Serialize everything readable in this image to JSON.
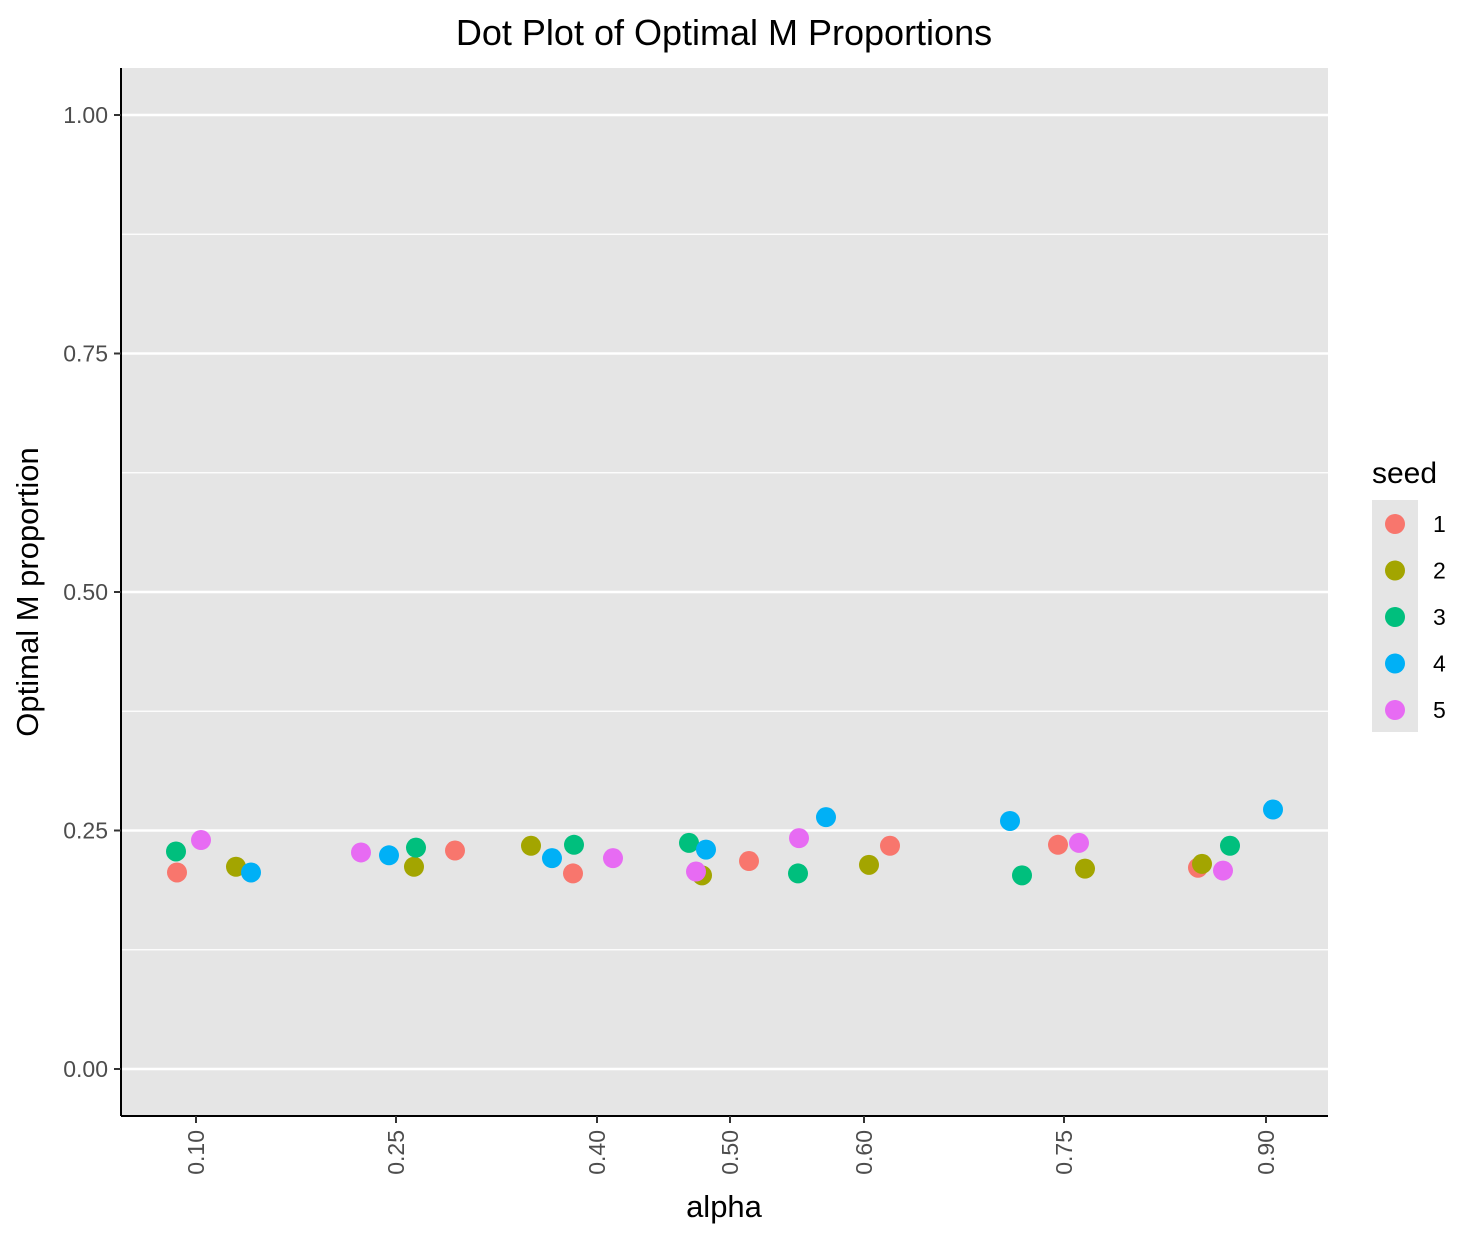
{
  "chart_data": {
    "type": "scatter",
    "title": "Dot Plot of Optimal M Proportions",
    "xlabel": "alpha",
    "ylabel": "Optimal M proportion",
    "x_scale": "categorical (jittered points)",
    "categories": [
      "0.10",
      "0.25",
      "0.40",
      "0.50",
      "0.60",
      "0.75",
      "0.90"
    ],
    "ylim": [
      -0.05,
      1.05
    ],
    "yticks": [
      "0.00",
      "0.25",
      "0.50",
      "0.75",
      "1.00"
    ],
    "grid": true,
    "legend": {
      "title": "seed",
      "position": "right"
    },
    "series": [
      {
        "name": "1",
        "color": "#F8766D",
        "points": [
          {
            "alpha": "0.10",
            "value": 0.206
          },
          {
            "alpha": "0.25",
            "value": 0.229
          },
          {
            "alpha": "0.40",
            "value": 0.205
          },
          {
            "alpha": "0.50",
            "value": 0.218
          },
          {
            "alpha": "0.60",
            "value": 0.234
          },
          {
            "alpha": "0.75",
            "value": 0.235
          },
          {
            "alpha": "0.90",
            "value": 0.211
          }
        ]
      },
      {
        "name": "2",
        "color": "#A3A500",
        "points": [
          {
            "alpha": "0.10",
            "value": 0.212
          },
          {
            "alpha": "0.25",
            "value": 0.212
          },
          {
            "alpha": "0.40",
            "value": 0.234
          },
          {
            "alpha": "0.50",
            "value": 0.203
          },
          {
            "alpha": "0.60",
            "value": 0.214
          },
          {
            "alpha": "0.75",
            "value": 0.21
          },
          {
            "alpha": "0.90",
            "value": 0.215
          }
        ]
      },
      {
        "name": "3",
        "color": "#00BF7D",
        "points": [
          {
            "alpha": "0.10",
            "value": 0.228
          },
          {
            "alpha": "0.25",
            "value": 0.232
          },
          {
            "alpha": "0.40",
            "value": 0.235
          },
          {
            "alpha": "0.50",
            "value": 0.237
          },
          {
            "alpha": "0.60",
            "value": 0.205
          },
          {
            "alpha": "0.75",
            "value": 0.203
          },
          {
            "alpha": "0.90",
            "value": 0.234
          }
        ]
      },
      {
        "name": "4",
        "color": "#00B0F6",
        "points": [
          {
            "alpha": "0.10",
            "value": 0.206
          },
          {
            "alpha": "0.25",
            "value": 0.224
          },
          {
            "alpha": "0.40",
            "value": 0.221
          },
          {
            "alpha": "0.50",
            "value": 0.23
          },
          {
            "alpha": "0.60",
            "value": 0.264
          },
          {
            "alpha": "0.75",
            "value": 0.26
          },
          {
            "alpha": "0.90",
            "value": 0.272
          }
        ]
      },
      {
        "name": "5",
        "color": "#E76BF3",
        "points": [
          {
            "alpha": "0.10",
            "value": 0.24
          },
          {
            "alpha": "0.25",
            "value": 0.227
          },
          {
            "alpha": "0.40",
            "value": 0.221
          },
          {
            "alpha": "0.50",
            "value": 0.207
          },
          {
            "alpha": "0.60",
            "value": 0.242
          },
          {
            "alpha": "0.75",
            "value": 0.237
          },
          {
            "alpha": "0.90",
            "value": 0.208
          }
        ]
      }
    ]
  }
}
